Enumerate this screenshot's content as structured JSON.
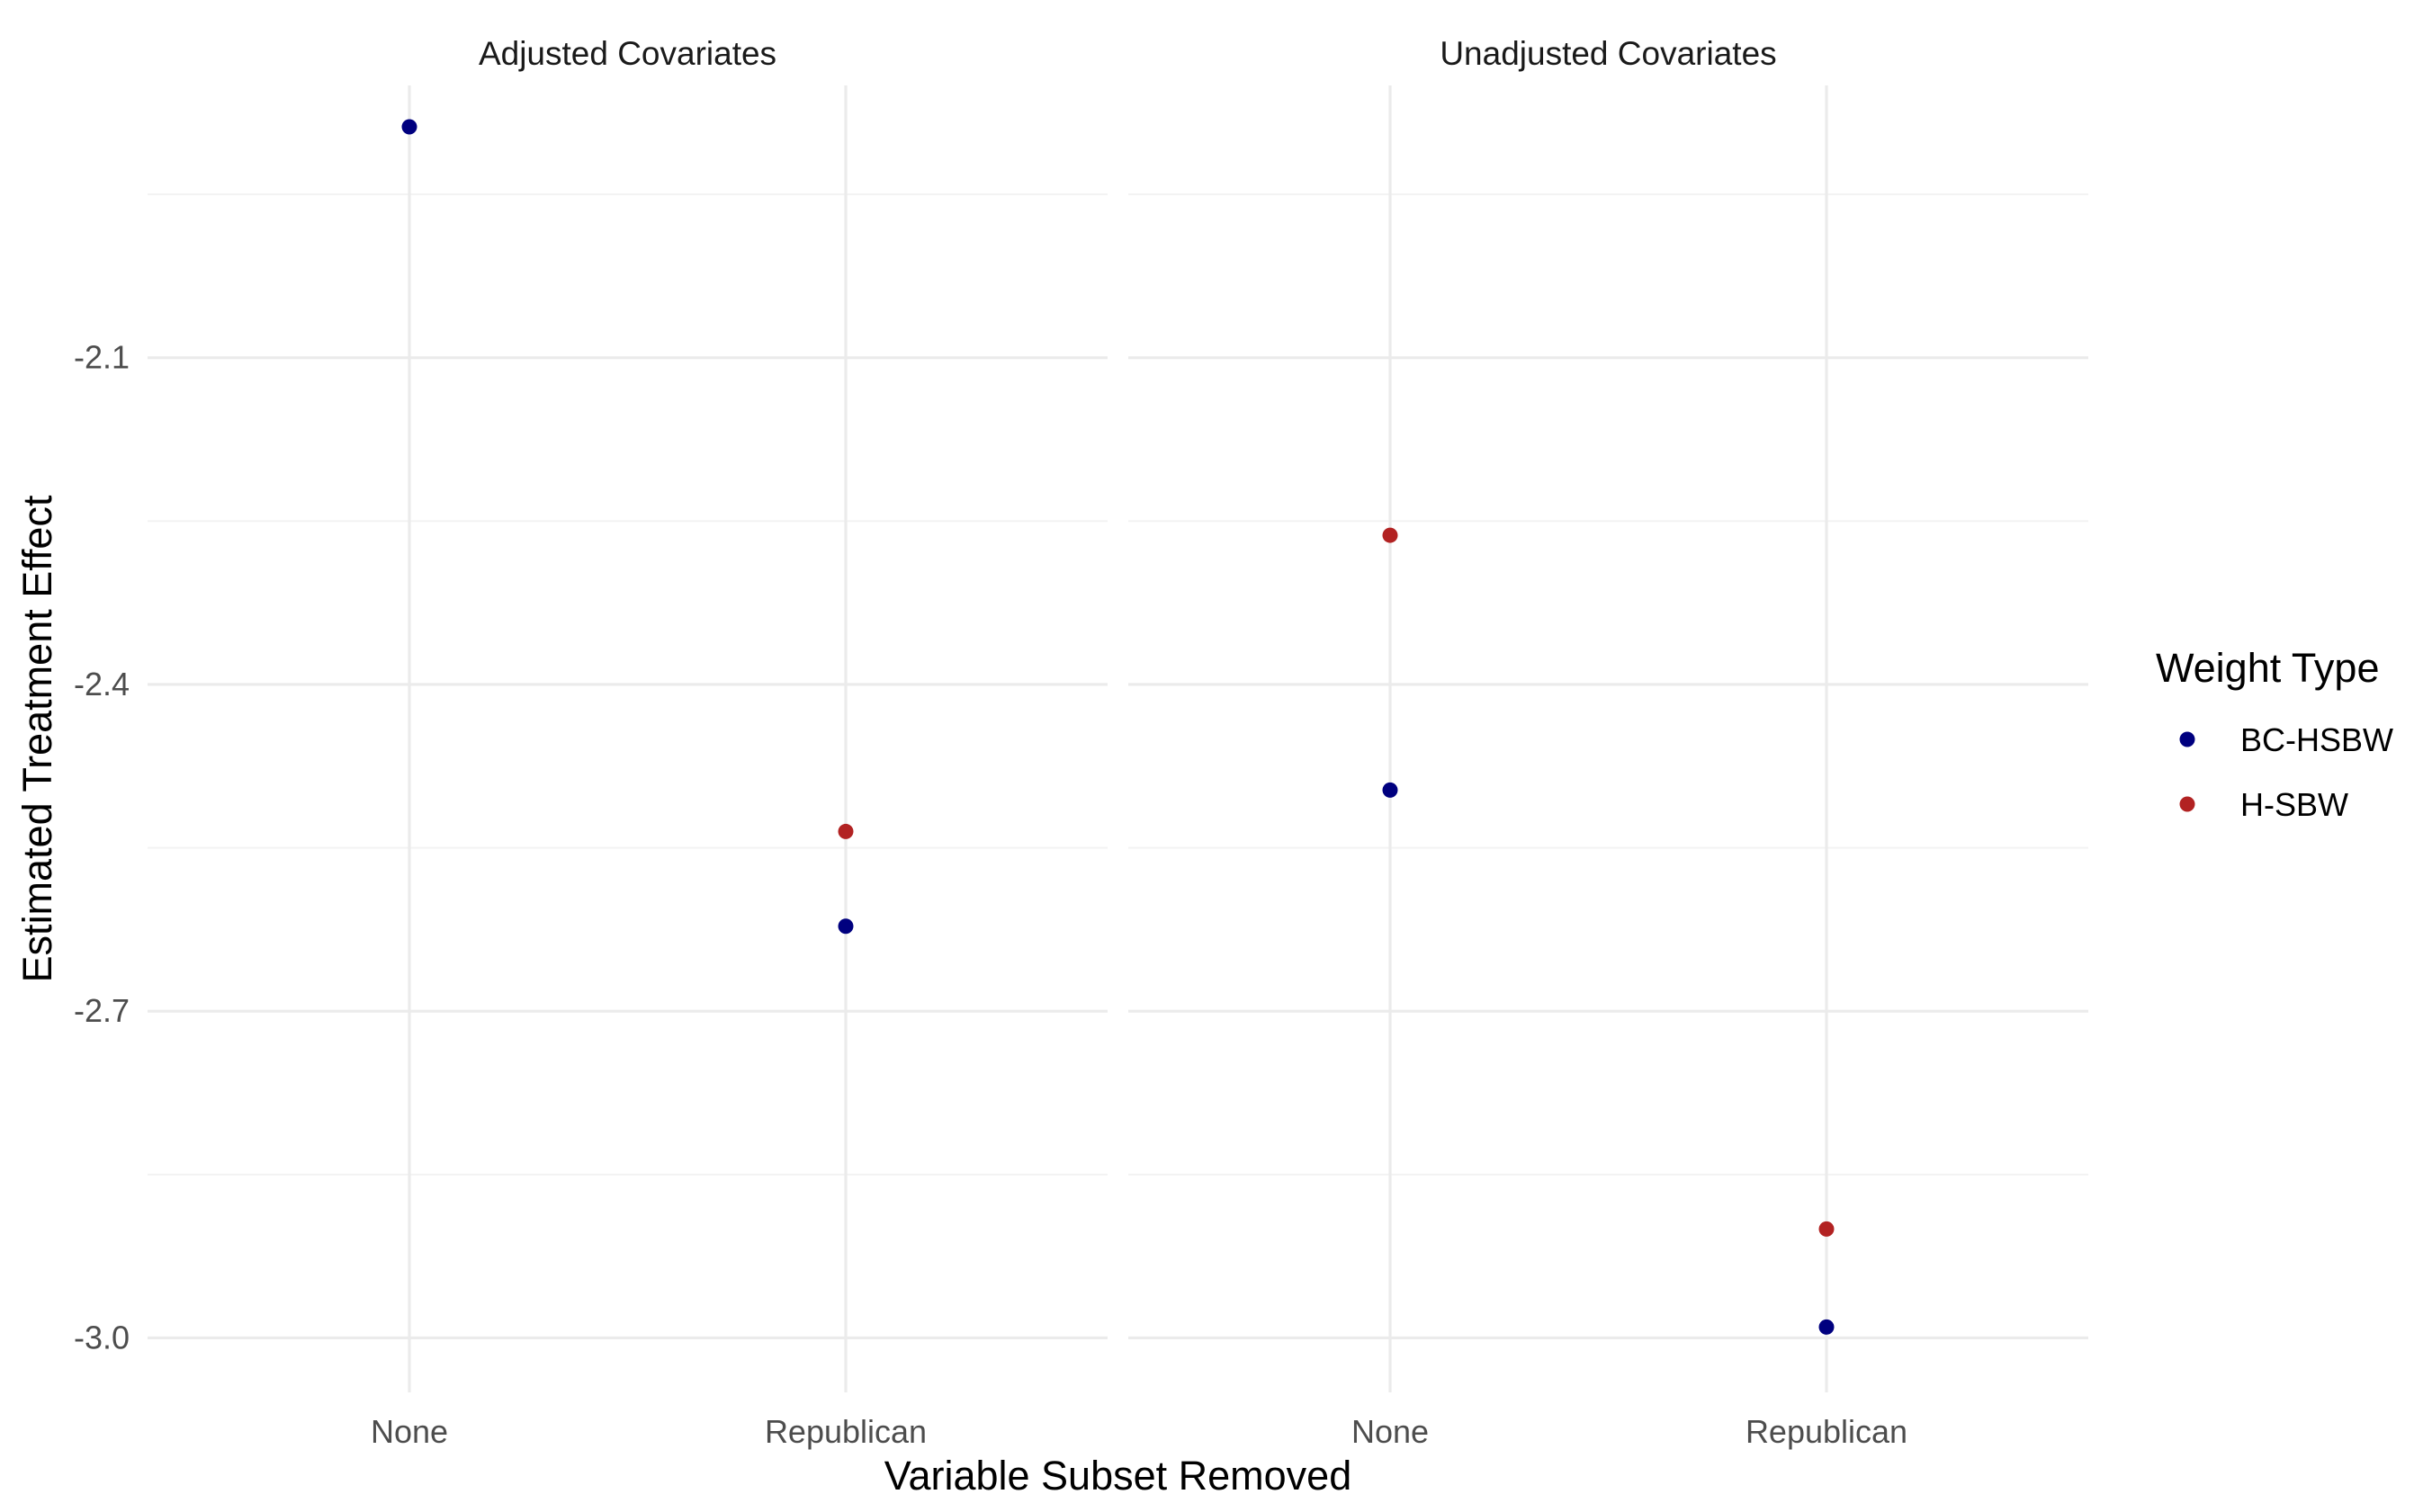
{
  "chart_data": {
    "type": "scatter",
    "title": "",
    "xlabel": "Variable Subset Removed",
    "ylabel": "Estimated Treatment Effect",
    "categories": [
      "None",
      "Republican"
    ],
    "ylim": [
      -3.05,
      -1.85
    ],
    "yticks": [
      -3.0,
      -2.7,
      -2.4,
      -2.1
    ],
    "ytick_labels": [
      "-3.0",
      "-2.7",
      "-2.4",
      "-2.1"
    ],
    "grid": true,
    "legend": {
      "title": "Weight Type",
      "position": "right",
      "entries": [
        "BC-HSBW",
        "H-SBW"
      ]
    },
    "colors": {
      "BC-HSBW": "#00007f",
      "H-SBW": "#b22222"
    },
    "panels": [
      {
        "strip": "Adjusted Covariates",
        "series": [
          {
            "name": "BC-HSBW",
            "values": [
              -1.888,
              -2.622
            ]
          },
          {
            "name": "H-SBW",
            "values": [
              null,
              -2.535
            ]
          }
        ]
      },
      {
        "strip": "Unadjusted Covariates",
        "series": [
          {
            "name": "BC-HSBW",
            "values": [
              -2.497,
              -2.99
            ]
          },
          {
            "name": "H-SBW",
            "values": [
              -2.263,
              -2.9
            ]
          }
        ]
      }
    ]
  }
}
